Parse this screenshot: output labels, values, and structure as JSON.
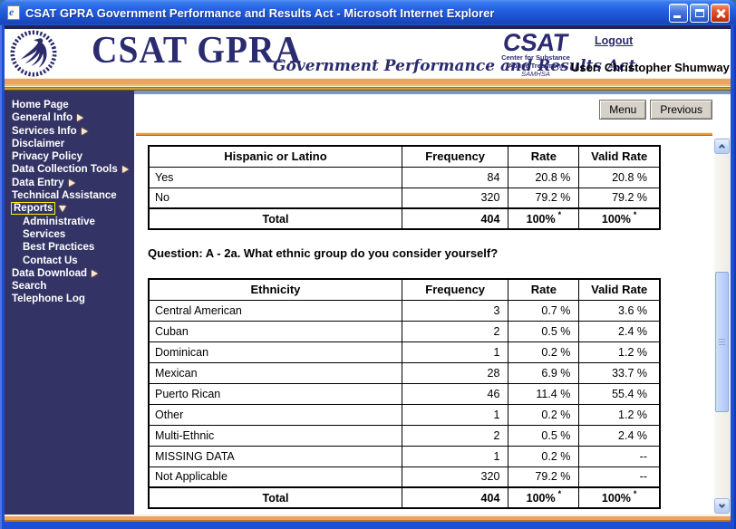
{
  "window": {
    "title": "CSAT GPRA Government Performance and Results Act - Microsoft Internet Explorer"
  },
  "header": {
    "brand": "CSAT GPRA",
    "tagline": "Government Performance and Results Act",
    "csat_logo": {
      "acronym": "CSAT",
      "line1": "Center for Substance",
      "line2": "Abuse Treatment",
      "line3": "SAMHSA"
    },
    "logout_label": "Logout",
    "user_label": "User: Christopher Shumway"
  },
  "sidebar": {
    "items": [
      {
        "label": "Home Page"
      },
      {
        "label": "General Info",
        "arrow": "right"
      },
      {
        "label": "Services Info",
        "arrow": "right"
      },
      {
        "label": "Disclaimer"
      },
      {
        "label": "Privacy Policy"
      },
      {
        "label": "Data Collection Tools",
        "arrow": "right"
      },
      {
        "label": "Data Entry",
        "arrow": "right"
      },
      {
        "label": "Technical Assistance"
      },
      {
        "label": "Reports",
        "arrow": "down",
        "selected": true
      },
      {
        "label": "Administrative",
        "indent": true
      },
      {
        "label": "Services",
        "indent": true
      },
      {
        "label": "Best Practices",
        "indent": true
      },
      {
        "label": "Contact Us",
        "indent": true
      },
      {
        "label": "Data Download",
        "arrow": "right"
      },
      {
        "label": "Search"
      },
      {
        "label": "Telephone Log"
      }
    ]
  },
  "toolbar": {
    "menu_label": "Menu",
    "previous_label": "Previous"
  },
  "content": {
    "question": "Question: A - 2a. What ethnic group do you consider yourself?",
    "footnote_marker": "*",
    "tables": [
      {
        "headers": [
          "Hispanic or Latino",
          "Frequency",
          "Rate",
          "Valid Rate"
        ],
        "rows": [
          [
            "Yes",
            "84",
            "20.8 %",
            "20.8 %"
          ],
          [
            "No",
            "320",
            "79.2 %",
            "79.2 %"
          ]
        ],
        "total": [
          "Total",
          "404",
          "100%",
          "100%"
        ]
      },
      {
        "headers": [
          "Ethnicity",
          "Frequency",
          "Rate",
          "Valid Rate"
        ],
        "rows": [
          [
            "Central American",
            "3",
            "0.7 %",
            "3.6 %"
          ],
          [
            "Cuban",
            "2",
            "0.5 %",
            "2.4 %"
          ],
          [
            "Dominican",
            "1",
            "0.2 %",
            "1.2 %"
          ],
          [
            "Mexican",
            "28",
            "6.9 %",
            "33.7 %"
          ],
          [
            "Puerto Rican",
            "46",
            "11.4 %",
            "55.4 %"
          ],
          [
            "Other",
            "1",
            "0.2 %",
            "1.2 %"
          ],
          [
            "Multi-Ethnic",
            "2",
            "0.5 %",
            "2.4 %"
          ],
          [
            "MISSING DATA",
            "1",
            "0.2 %",
            "--"
          ],
          [
            "Not Applicable",
            "320",
            "79.2 %",
            "--"
          ]
        ],
        "total": [
          "Total",
          "404",
          "100%",
          "100%"
        ]
      }
    ]
  },
  "colors": {
    "sidebar_navy": "#333366",
    "brand_navy": "#2B2B70",
    "gold_accent": "#EDA265",
    "titlebar_blue": "#2563E2",
    "steel_blue": "#7E96C4",
    "selected_outline": "#FFF200"
  }
}
